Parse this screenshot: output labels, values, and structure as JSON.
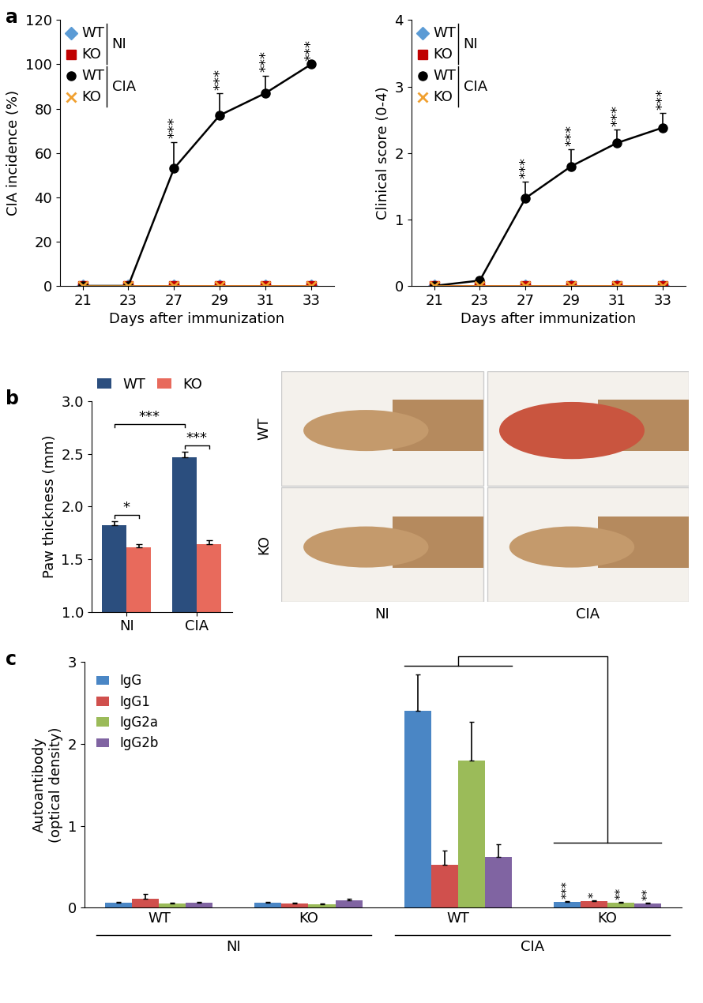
{
  "chart_data": [
    {
      "type": "line",
      "panel_label": "a",
      "x_label": "Days after immunization",
      "y_label": "CIA incidence (%)",
      "categories": [
        "21",
        "23",
        "27",
        "29",
        "31",
        "33"
      ],
      "ylim": [
        0,
        120
      ],
      "yticks": [
        0,
        20,
        40,
        60,
        80,
        100,
        120
      ],
      "series": [
        {
          "name": "WT",
          "group": "NI",
          "color": "#5b9bd5",
          "marker": "diamond",
          "values": [
            0,
            0,
            0,
            0,
            0,
            0
          ],
          "errors": [
            0,
            0,
            0,
            0,
            0,
            0
          ]
        },
        {
          "name": "KO",
          "group": "NI",
          "color": "#c00000",
          "marker": "square",
          "values": [
            0,
            0,
            0,
            0,
            0,
            0
          ],
          "errors": [
            0,
            0,
            0,
            0,
            0,
            0
          ]
        },
        {
          "name": "WT",
          "group": "CIA",
          "color": "#000000",
          "marker": "circle",
          "values": [
            0,
            0,
            53,
            77,
            87,
            100
          ],
          "errors": [
            0,
            0,
            12,
            10,
            8,
            0
          ],
          "significance": [
            null,
            null,
            "***",
            "***",
            "***",
            "***"
          ]
        },
        {
          "name": "KO",
          "group": "CIA",
          "color": "#f0a030",
          "marker": "x",
          "values": [
            0,
            0,
            0,
            0,
            0,
            0
          ],
          "errors": [
            0,
            0,
            0,
            0,
            0,
            0
          ]
        }
      ]
    },
    {
      "type": "line",
      "x_label": "Days after immunization",
      "y_label": "Clinical score (0-4)",
      "categories": [
        "21",
        "23",
        "27",
        "29",
        "31",
        "33"
      ],
      "ylim": [
        0,
        4
      ],
      "yticks": [
        0,
        1,
        2,
        3,
        4
      ],
      "series": [
        {
          "name": "WT",
          "group": "NI",
          "color": "#5b9bd5",
          "marker": "diamond",
          "values": [
            0,
            0,
            0,
            0,
            0,
            0
          ],
          "errors": [
            0,
            0,
            0,
            0,
            0,
            0
          ]
        },
        {
          "name": "KO",
          "group": "NI",
          "color": "#c00000",
          "marker": "square",
          "values": [
            0,
            0,
            0,
            0,
            0,
            0
          ],
          "errors": [
            0,
            0,
            0,
            0,
            0,
            0
          ]
        },
        {
          "name": "WT",
          "group": "CIA",
          "color": "#000000",
          "marker": "circle",
          "values": [
            0,
            0.08,
            1.32,
            1.8,
            2.15,
            2.38
          ],
          "errors": [
            0,
            0.05,
            0.25,
            0.25,
            0.2,
            0.22
          ],
          "significance": [
            null,
            null,
            "***",
            "***",
            "***",
            "***"
          ]
        },
        {
          "name": "KO",
          "group": "CIA",
          "color": "#f0a030",
          "marker": "x",
          "values": [
            0,
            0,
            0,
            0,
            0,
            0
          ],
          "errors": [
            0,
            0,
            0,
            0,
            0,
            0
          ]
        }
      ]
    },
    {
      "type": "bar",
      "panel_label": "b",
      "y_label": "Paw thickness (mm)",
      "categories": [
        "NI",
        "CIA"
      ],
      "ylim": [
        1.0,
        3.0
      ],
      "yticks": [
        {
          "value": 1.0,
          "label": "1.0"
        },
        {
          "value": 1.5,
          "label": "1.5"
        },
        {
          "value": 2.0,
          "label": "2.0"
        },
        {
          "value": 2.5,
          "label": "2.5"
        },
        {
          "value": 3.0,
          "label": "3.0"
        }
      ],
      "legend": "upper left",
      "series": [
        {
          "name": "WT",
          "color": "#2b4e7e",
          "values": [
            1.82,
            2.47
          ],
          "errors": [
            0.04,
            0.05
          ]
        },
        {
          "name": "KO",
          "color": "#e86a5c",
          "values": [
            1.61,
            1.64
          ],
          "errors": [
            0.03,
            0.04
          ]
        }
      ],
      "comparisons": [
        {
          "from": {
            "category": "NI",
            "series": "WT"
          },
          "to": {
            "category": "NI",
            "series": "KO"
          },
          "text": "*"
        },
        {
          "from": {
            "category": "CIA",
            "series": "WT"
          },
          "to": {
            "category": "CIA",
            "series": "KO"
          },
          "text": "***"
        },
        {
          "from": {
            "category": "NI",
            "series": "WT"
          },
          "to": {
            "category": "CIA",
            "series": "WT"
          },
          "text": "***"
        }
      ]
    },
    {
      "type": "bar",
      "panel_label": "c",
      "y_label": "Autoantibody\n(optical density)",
      "categories": [
        "WT",
        "KO",
        "WT",
        "KO"
      ],
      "category_groups": [
        "NI",
        "NI",
        "CIA",
        "CIA"
      ],
      "ylim": [
        0,
        3
      ],
      "yticks": [
        0,
        1,
        2,
        3
      ],
      "legend": "upper left",
      "series": [
        {
          "name": "IgG",
          "color": "#4a86c5",
          "values": [
            0.06,
            0.06,
            2.4,
            0.07
          ],
          "errors": [
            0.01,
            0.01,
            0.45,
            0.01
          ],
          "significance": [
            null,
            null,
            null,
            "***"
          ]
        },
        {
          "name": "IgG1",
          "color": "#d0504d",
          "values": [
            0.11,
            0.05,
            0.52,
            0.08
          ],
          "errors": [
            0.06,
            0.01,
            0.18,
            0.01
          ],
          "significance": [
            null,
            null,
            null,
            "*"
          ]
        },
        {
          "name": "IgG2a",
          "color": "#9bbb59",
          "values": [
            0.05,
            0.04,
            1.8,
            0.06
          ],
          "errors": [
            0.01,
            0.01,
            0.47,
            0.01
          ],
          "significance": [
            null,
            null,
            null,
            "**"
          ]
        },
        {
          "name": "IgG2b",
          "color": "#8064a2",
          "values": [
            0.06,
            0.09,
            0.62,
            0.05
          ],
          "errors": [
            0.01,
            0.02,
            0.15,
            0.01
          ],
          "significance": [
            null,
            null,
            null,
            "**"
          ]
        }
      ]
    }
  ],
  "photos": {
    "rows": [
      "WT",
      "KO"
    ],
    "columns": [
      "NI",
      "CIA"
    ]
  }
}
